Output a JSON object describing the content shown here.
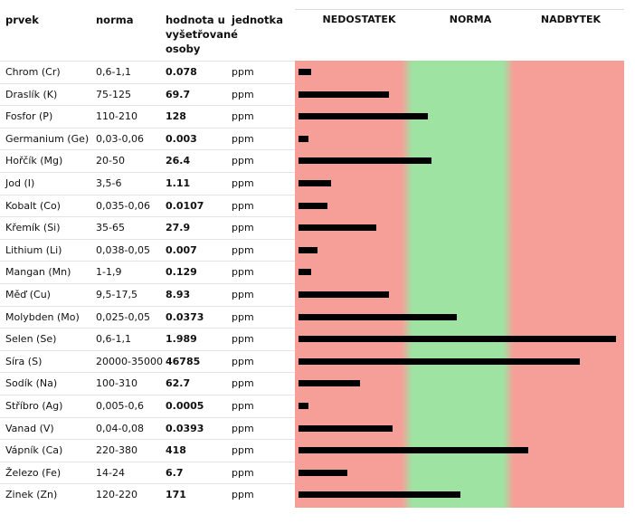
{
  "headers": {
    "element": "prvek",
    "norm": "norma",
    "value": "hodnota u vyšetřované osoby",
    "unit": "jednotka",
    "deficit": "NEDOSTATEK",
    "normal": "NORMA",
    "excess": "NADBYTEK"
  },
  "colors": {
    "deficit": "#f59f98",
    "normal": "#9fe3a3",
    "excess": "#f59f98",
    "bar": "#000000"
  },
  "rows": [
    {
      "element": "Chrom (Cr)",
      "norm": "0,6-1,1",
      "value": "0.078",
      "unit": "ppm"
    },
    {
      "element": "Draslík (K)",
      "norm": "75-125",
      "value": "69.7",
      "unit": "ppm"
    },
    {
      "element": "Fosfor (P)",
      "norm": "110-210",
      "value": "128",
      "unit": "ppm"
    },
    {
      "element": "Germanium (Ge)",
      "norm": "0,03-0,06",
      "value": "0.003",
      "unit": "ppm"
    },
    {
      "element": "Hořčík (Mg)",
      "norm": "20-50",
      "value": "26.4",
      "unit": "ppm"
    },
    {
      "element": "Jod (I)",
      "norm": "3,5-6",
      "value": "1.11",
      "unit": "ppm"
    },
    {
      "element": "Kobalt (Co)",
      "norm": "0,035-0,06",
      "value": "0.0107",
      "unit": "ppm"
    },
    {
      "element": "Křemík (Si)",
      "norm": "35-65",
      "value": "27.9",
      "unit": "ppm"
    },
    {
      "element": "Lithium (Li)",
      "norm": "0,038-0,05",
      "value": "0.007",
      "unit": "ppm"
    },
    {
      "element": "Mangan (Mn)",
      "norm": "1-1,9",
      "value": "0.129",
      "unit": "ppm"
    },
    {
      "element": "Měď (Cu)",
      "norm": "9,5-17,5",
      "value": "8.93",
      "unit": "ppm"
    },
    {
      "element": "Molybden (Mo)",
      "norm": "0,025-0,05",
      "value": "0.0373",
      "unit": "ppm"
    },
    {
      "element": "Selen (Se)",
      "norm": "0,6-1,1",
      "value": "1.989",
      "unit": "ppm"
    },
    {
      "element": "Síra (S)",
      "norm": "20000-35000",
      "value": "46785",
      "unit": "ppm"
    },
    {
      "element": "Sodík (Na)",
      "norm": "100-310",
      "value": "62.7",
      "unit": "ppm"
    },
    {
      "element": "Stříbro (Ag)",
      "norm": "0,005-0,6",
      "value": "0.0005",
      "unit": "ppm"
    },
    {
      "element": "Vanad (V)",
      "norm": "0,04-0,08",
      "value": "0.0393",
      "unit": "ppm"
    },
    {
      "element": "Vápník (Ca)",
      "norm": "220-380",
      "value": "418",
      "unit": "ppm"
    },
    {
      "element": "Železo (Fe)",
      "norm": "14-24",
      "value": "6.7",
      "unit": "ppm"
    },
    {
      "element": "Zinek (Zn)",
      "norm": "120-220",
      "value": "171",
      "unit": "ppm"
    }
  ],
  "chart_data": {
    "type": "bar",
    "orientation": "horizontal",
    "categories": [
      "Chrom (Cr)",
      "Draslík (K)",
      "Fosfor (P)",
      "Germanium (Ge)",
      "Hořčík (Mg)",
      "Jod (I)",
      "Kobalt (Co)",
      "Křemík (Si)",
      "Lithium (Li)",
      "Mangan (Mn)",
      "Měď (Cu)",
      "Molybden (Mo)",
      "Selen (Se)",
      "Síra (S)",
      "Sodík (Na)",
      "Stříbro (Ag)",
      "Vanad (V)",
      "Vápník (Ca)",
      "Železo (Fe)",
      "Zinek (Zn)"
    ],
    "zones": [
      "NEDOSTATEK",
      "NORMA",
      "NADBYTEK"
    ],
    "zone_fraction_bounds": [
      0.34,
      0.64
    ],
    "levels": [
      0.04,
      0.28,
      0.4,
      0.03,
      0.41,
      0.1,
      0.09,
      0.24,
      0.06,
      0.04,
      0.28,
      0.49,
      0.98,
      0.87,
      0.19,
      0.03,
      0.29,
      0.71,
      0.15,
      0.5
    ],
    "grid": false,
    "legend": "none"
  }
}
